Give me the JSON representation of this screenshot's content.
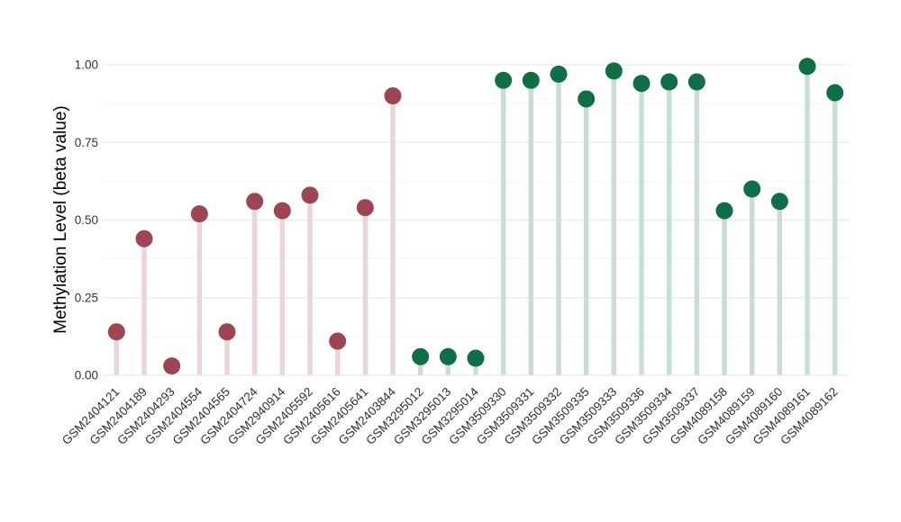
{
  "chart_data": {
    "type": "lollipop",
    "title": "",
    "xlabel": "",
    "ylabel": "Methylation Level (beta value)",
    "ylim": [
      0.0,
      1.0
    ],
    "grid": "major+minor horizontal, no axis lines (minimal theme)",
    "legend": "none",
    "yticks": [
      {
        "value": 0.0,
        "label": "0.00"
      },
      {
        "value": 0.25,
        "label": "0.25"
      },
      {
        "value": 0.5,
        "label": "0.50"
      },
      {
        "value": 0.75,
        "label": "0.75"
      },
      {
        "value": 1.0,
        "label": "1.00"
      }
    ],
    "yminor": [
      0.125,
      0.375,
      0.625,
      0.875
    ],
    "x_tick_angle_degrees": 45,
    "series": [
      {
        "name": "group-maroon",
        "dot_color": "#9d4652",
        "stem_color": "#ecd5da"
      },
      {
        "name": "group-green",
        "dot_color": "#0e6e45",
        "stem_color": "#c9ddd3"
      }
    ],
    "points": [
      {
        "sample": "GSM2404121",
        "value": 0.14,
        "series": 0
      },
      {
        "sample": "GSM2404189",
        "value": 0.44,
        "series": 0
      },
      {
        "sample": "GSM2404293",
        "value": 0.03,
        "series": 0
      },
      {
        "sample": "GSM2404554",
        "value": 0.52,
        "series": 0
      },
      {
        "sample": "GSM2404565",
        "value": 0.14,
        "series": 0
      },
      {
        "sample": "GSM2404724",
        "value": 0.56,
        "series": 0
      },
      {
        "sample": "GSM2940914",
        "value": 0.53,
        "series": 0
      },
      {
        "sample": "GSM2405592",
        "value": 0.58,
        "series": 0
      },
      {
        "sample": "GSM2405616",
        "value": 0.11,
        "series": 0
      },
      {
        "sample": "GSM2405641",
        "value": 0.54,
        "series": 0
      },
      {
        "sample": "GSM2403844",
        "value": 0.9,
        "series": 0
      },
      {
        "sample": "GSM3295012",
        "value": 0.06,
        "series": 1
      },
      {
        "sample": "GSM3295013",
        "value": 0.06,
        "series": 1
      },
      {
        "sample": "GSM3295014",
        "value": 0.055,
        "series": 1
      },
      {
        "sample": "GSM3509330",
        "value": 0.95,
        "series": 1
      },
      {
        "sample": "GSM3509331",
        "value": 0.95,
        "series": 1
      },
      {
        "sample": "GSM3509332",
        "value": 0.97,
        "series": 1
      },
      {
        "sample": "GSM3509335",
        "value": 0.89,
        "series": 1
      },
      {
        "sample": "GSM3509333",
        "value": 0.98,
        "series": 1
      },
      {
        "sample": "GSM3509336",
        "value": 0.94,
        "series": 1
      },
      {
        "sample": "GSM3509334",
        "value": 0.945,
        "series": 1
      },
      {
        "sample": "GSM3509337",
        "value": 0.945,
        "series": 1
      },
      {
        "sample": "GSM4089158",
        "value": 0.53,
        "series": 1
      },
      {
        "sample": "GSM4089159",
        "value": 0.6,
        "series": 1
      },
      {
        "sample": "GSM4089160",
        "value": 0.56,
        "series": 1
      },
      {
        "sample": "GSM4089161",
        "value": 0.995,
        "series": 1
      },
      {
        "sample": "GSM4089162",
        "value": 0.91,
        "series": 1
      }
    ]
  },
  "colors": {
    "background": "#ffffff",
    "grid_major": "#e9e9e9",
    "grid_minor": "#f5f5f5",
    "tick_label": "#333333",
    "x_label": "#303030",
    "axis_title": "#000000"
  }
}
